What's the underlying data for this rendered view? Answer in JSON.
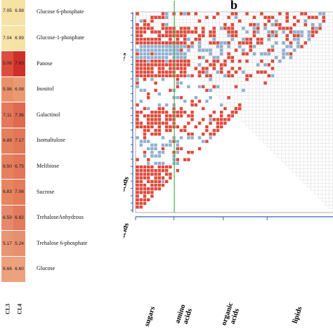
{
  "panel_b_letter": "b",
  "heatmap": {
    "columns": [
      "CL3",
      "CL4"
    ],
    "rows": [
      {
        "label": "Glucose 6-phosphate",
        "values": [
          "7.05",
          "6.98"
        ],
        "colors": [
          "#f5e2a4",
          "#f5e2a4"
        ]
      },
      {
        "label": "Glucose-1-phosphate",
        "values": [
          "7.04",
          "6.99"
        ],
        "colors": [
          "#f6e4a8",
          "#f5e2a4"
        ]
      },
      {
        "label": "Panose",
        "values": [
          "5.06",
          "7.63"
        ],
        "colors": [
          "#dd4d3e",
          "#cf2f2a"
        ]
      },
      {
        "label": "Inositol",
        "values": [
          "5.96",
          "6.08"
        ],
        "colors": [
          "#e8906a",
          "#e99a72"
        ]
      },
      {
        "label": "Galactinol",
        "values": [
          "7.11",
          "7.36"
        ],
        "colors": [
          "#e3785a",
          "#df6a50"
        ]
      },
      {
        "label": "Isomaltulose",
        "values": [
          "6.89",
          "7.17"
        ],
        "colors": [
          "#e4805e",
          "#e27858"
        ]
      },
      {
        "label": "Melibiose",
        "values": [
          "6.50",
          "6.75"
        ],
        "colors": [
          "#e57f5e",
          "#e37658"
        ]
      },
      {
        "label": "Sucrose",
        "values": [
          "6.83",
          "7.06"
        ],
        "colors": [
          "#e6855f",
          "#e47b59"
        ]
      },
      {
        "label": "TrehaloseAnhydrous",
        "values": [
          "6.59",
          "6.82"
        ],
        "colors": [
          "#e6886a",
          "#e27a5c"
        ]
      },
      {
        "label": "Trehalose 6-phosphate",
        "values": [
          "5.17",
          "5.24"
        ],
        "colors": [
          "#e99472",
          "#e78f6e"
        ]
      },
      {
        "label": "Glucose",
        "values": [
          "6.66",
          "6.60"
        ],
        "colors": [
          "#eda07c",
          "#eda27e"
        ]
      }
    ]
  },
  "panel_b": {
    "row_groups": [
      "nucleotides",
      "lipids",
      "organic acids",
      "amino acids",
      "sugars"
    ],
    "col_groups": [
      "sugars",
      "amino acids",
      "organic acids",
      "lipids"
    ],
    "colors": {
      "positive": "#e0483a",
      "negative": "#8fb0cf",
      "grid": "#d9d9d9",
      "axis": "#3a62a8",
      "divider": "#4caf50"
    }
  }
}
